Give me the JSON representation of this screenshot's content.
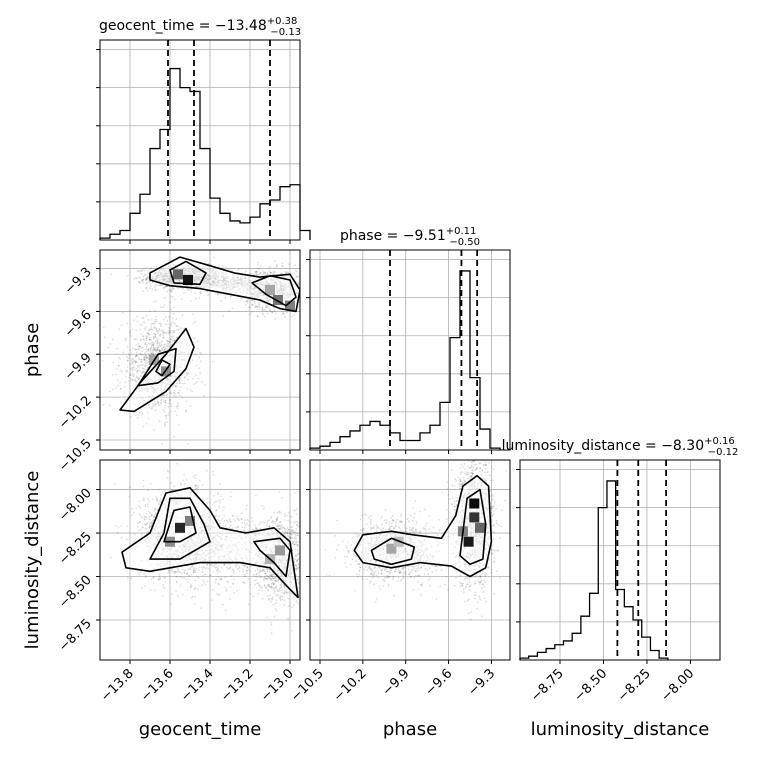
{
  "chart_data": {
    "type": "corner",
    "parameters": [
      "geocent_time",
      "phase",
      "luminosity_distance"
    ],
    "titles": [
      {
        "param": "geocent_time",
        "prefix": "geocent_time = ",
        "median": "−13.48",
        "plus": "+0.38",
        "minus": "−0.13"
      },
      {
        "param": "phase",
        "prefix": "phase = ",
        "median": "−9.51",
        "plus": "+0.11",
        "minus": "−0.50"
      },
      {
        "param": "luminosity_distance",
        "prefix": "luminosity_distance = ",
        "median": "−8.30",
        "plus": "+0.16",
        "minus": "−0.12"
      }
    ],
    "ranges": {
      "geocent_time": [
        -13.95,
        -12.95
      ],
      "phase": [
        -10.57,
        -9.17
      ],
      "luminosity_distance": [
        -8.98,
        -7.83
      ]
    },
    "ticks": {
      "geocent_time": [
        -13.8,
        -13.6,
        -13.4,
        -13.2,
        -13.0
      ],
      "phase": [
        -10.5,
        -10.2,
        -9.9,
        -9.6,
        -9.3
      ],
      "luminosity_distance": [
        -8.75,
        -8.5,
        -8.25,
        -8.0
      ]
    },
    "tick_labels": {
      "geocent_time": [
        "−13.8",
        "−13.6",
        "−13.4",
        "−13.2",
        "−13.0"
      ],
      "phase": [
        "−10.5",
        "−10.2",
        "−9.9",
        "−9.6",
        "−9.3"
      ],
      "luminosity_distance": [
        "−8.75",
        "−8.50",
        "−8.25",
        "−8.00"
      ]
    },
    "quantile_lines": {
      "geocent_time": [
        -13.61,
        -13.48,
        -13.1
      ],
      "phase": [
        -10.01,
        -9.51,
        -9.4
      ],
      "luminosity_distance": [
        -8.42,
        -8.3,
        -8.14
      ]
    },
    "histograms": {
      "geocent_time": {
        "edges_start": -13.95,
        "bin_width": 0.05,
        "heights": [
          0.01,
          0.03,
          0.05,
          0.14,
          0.24,
          0.48,
          0.58,
          0.9,
          0.8,
          0.78,
          0.48,
          0.22,
          0.14,
          0.1,
          0.09,
          0.12,
          0.19,
          0.21,
          0.28,
          0.29,
          0.05
        ]
      },
      "phase": {
        "edges_start": -10.57,
        "bin_width": 0.07,
        "heights": [
          0.01,
          0.02,
          0.04,
          0.07,
          0.1,
          0.13,
          0.15,
          0.13,
          0.09,
          0.05,
          0.05,
          0.09,
          0.13,
          0.25,
          0.59,
          0.94,
          0.38,
          0.11,
          0.01
        ]
      },
      "luminosity_distance": {
        "edges_start": -8.98,
        "bin_width": 0.05,
        "heights": [
          0.01,
          0.02,
          0.04,
          0.06,
          0.08,
          0.1,
          0.14,
          0.23,
          0.35,
          0.8,
          0.94,
          0.37,
          0.28,
          0.21,
          0.12,
          0.05,
          0.01
        ]
      }
    },
    "histogram_ylim": [
      0,
      1.05
    ],
    "histogram_yticks": [
      0.2,
      0.4,
      0.6,
      0.8,
      1.0
    ],
    "clusters": {
      "geocent_time|phase": [
        {
          "cx": -13.53,
          "cy": -9.36,
          "sx": 0.09,
          "sy": 0.04,
          "n": 1200
        },
        {
          "cx": -13.08,
          "cy": -9.45,
          "sx": 0.07,
          "sy": 0.07,
          "n": 900
        },
        {
          "cx": -13.66,
          "cy": -9.98,
          "sx": 0.09,
          "sy": 0.16,
          "n": 1100
        },
        {
          "cx": -13.3,
          "cy": -9.4,
          "sx": 0.12,
          "sy": 0.04,
          "n": 500
        }
      ],
      "geocent_time|luminosity_distance": [
        {
          "cx": -13.55,
          "cy": -8.25,
          "sx": 0.1,
          "sy": 0.13,
          "n": 1300
        },
        {
          "cx": -13.05,
          "cy": -8.4,
          "sx": 0.06,
          "sy": 0.12,
          "n": 900
        },
        {
          "cx": -13.3,
          "cy": -8.35,
          "sx": 0.2,
          "sy": 0.12,
          "n": 800
        }
      ],
      "phase|luminosity_distance": [
        {
          "cx": -9.97,
          "cy": -8.35,
          "sx": 0.15,
          "sy": 0.09,
          "n": 1000
        },
        {
          "cx": -9.42,
          "cy": -8.2,
          "sx": 0.07,
          "sy": 0.18,
          "n": 1300
        }
      ]
    },
    "contours": {
      "geocent_time|phase": [
        [
          [
            -13.7,
            -9.33
          ],
          [
            -13.55,
            -9.22
          ],
          [
            -13.4,
            -9.28
          ],
          [
            -13.28,
            -9.33
          ],
          [
            -13.15,
            -9.36
          ],
          [
            -13.0,
            -9.34
          ],
          [
            -12.95,
            -9.45
          ],
          [
            -12.97,
            -9.6
          ],
          [
            -13.05,
            -9.58
          ],
          [
            -13.15,
            -9.52
          ],
          [
            -13.3,
            -9.48
          ],
          [
            -13.45,
            -9.44
          ],
          [
            -13.6,
            -9.42
          ],
          [
            -13.7,
            -9.38
          ]
        ],
        [
          [
            -13.6,
            -9.31
          ],
          [
            -13.52,
            -9.25
          ],
          [
            -13.42,
            -9.33
          ],
          [
            -13.45,
            -9.41
          ],
          [
            -13.58,
            -9.4
          ]
        ],
        [
          [
            -13.19,
            -9.4
          ],
          [
            -13.1,
            -9.35
          ],
          [
            -13.0,
            -9.38
          ],
          [
            -12.97,
            -9.5
          ],
          [
            -13.02,
            -9.56
          ],
          [
            -13.12,
            -9.48
          ]
        ],
        [
          [
            -13.85,
            -10.29
          ],
          [
            -13.75,
            -10.1
          ],
          [
            -13.62,
            -9.9
          ],
          [
            -13.52,
            -9.72
          ],
          [
            -13.48,
            -9.85
          ],
          [
            -13.52,
            -10.0
          ],
          [
            -13.62,
            -10.16
          ],
          [
            -13.78,
            -10.3
          ]
        ],
        [
          [
            -13.76,
            -10.12
          ],
          [
            -13.66,
            -9.9
          ],
          [
            -13.57,
            -9.86
          ],
          [
            -13.58,
            -10.02
          ],
          [
            -13.66,
            -10.1
          ]
        ],
        [
          [
            -13.67,
            -10.02
          ],
          [
            -13.64,
            -9.94
          ],
          [
            -13.6,
            -9.97
          ],
          [
            -13.64,
            -10.05
          ]
        ]
      ],
      "geocent_time|luminosity_distance": [
        [
          [
            -13.84,
            -8.36
          ],
          [
            -13.7,
            -8.25
          ],
          [
            -13.62,
            -8.02
          ],
          [
            -13.5,
            -7.99
          ],
          [
            -13.4,
            -8.12
          ],
          [
            -13.35,
            -8.22
          ],
          [
            -13.22,
            -8.25
          ],
          [
            -13.08,
            -8.22
          ],
          [
            -13.0,
            -8.3
          ],
          [
            -12.96,
            -8.62
          ],
          [
            -13.02,
            -8.55
          ],
          [
            -13.1,
            -8.45
          ],
          [
            -13.25,
            -8.42
          ],
          [
            -13.45,
            -8.42
          ],
          [
            -13.6,
            -8.45
          ],
          [
            -13.7,
            -8.47
          ],
          [
            -13.82,
            -8.45
          ]
        ],
        [
          [
            -13.7,
            -8.4
          ],
          [
            -13.63,
            -8.25
          ],
          [
            -13.6,
            -8.05
          ],
          [
            -13.5,
            -8.05
          ],
          [
            -13.43,
            -8.2
          ],
          [
            -13.4,
            -8.3
          ],
          [
            -13.55,
            -8.4
          ]
        ],
        [
          [
            -13.18,
            -8.3
          ],
          [
            -13.05,
            -8.28
          ],
          [
            -13.0,
            -8.35
          ],
          [
            -13.02,
            -8.5
          ],
          [
            -13.08,
            -8.42
          ],
          [
            -13.15,
            -8.35
          ]
        ],
        [
          [
            -13.63,
            -8.3
          ],
          [
            -13.58,
            -8.12
          ],
          [
            -13.5,
            -8.1
          ],
          [
            -13.47,
            -8.25
          ],
          [
            -13.55,
            -8.3
          ]
        ]
      ],
      "phase|luminosity_distance": [
        [
          [
            -10.26,
            -8.35
          ],
          [
            -10.2,
            -8.26
          ],
          [
            -10.0,
            -8.24
          ],
          [
            -9.85,
            -8.26
          ],
          [
            -9.65,
            -8.28
          ],
          [
            -9.55,
            -8.15
          ],
          [
            -9.5,
            -7.98
          ],
          [
            -9.4,
            -7.92
          ],
          [
            -9.32,
            -7.98
          ],
          [
            -9.3,
            -8.3
          ],
          [
            -9.34,
            -8.45
          ],
          [
            -9.45,
            -8.5
          ],
          [
            -9.58,
            -8.44
          ],
          [
            -9.8,
            -8.42
          ],
          [
            -10.0,
            -8.45
          ],
          [
            -10.2,
            -8.42
          ]
        ],
        [
          [
            -10.14,
            -8.35
          ],
          [
            -10.0,
            -8.28
          ],
          [
            -9.84,
            -8.33
          ],
          [
            -9.86,
            -8.4
          ],
          [
            -10.0,
            -8.43
          ],
          [
            -10.12,
            -8.4
          ]
        ],
        [
          [
            -9.52,
            -8.38
          ],
          [
            -9.47,
            -8.05
          ],
          [
            -9.38,
            -8.0
          ],
          [
            -9.34,
            -8.2
          ],
          [
            -9.36,
            -8.4
          ],
          [
            -9.45,
            -8.43
          ]
        ]
      ]
    },
    "hotspots": {
      "geocent_time|phase": [
        [
          -13.51,
          -9.38,
          0.92
        ],
        [
          -13.56,
          -9.34,
          0.6
        ],
        [
          -13.06,
          -9.52,
          0.55
        ],
        [
          -13.0,
          -9.56,
          0.5
        ],
        [
          -13.1,
          -9.45,
          0.35
        ],
        [
          -13.62,
          -10.02,
          0.45
        ],
        [
          -13.68,
          -9.94,
          0.35
        ]
      ],
      "geocent_time|luminosity_distance": [
        [
          -13.55,
          -8.22,
          0.85
        ],
        [
          -13.5,
          -8.18,
          0.5
        ],
        [
          -13.6,
          -8.3,
          0.45
        ],
        [
          -13.05,
          -8.35,
          0.4
        ],
        [
          -13.1,
          -8.4,
          0.3
        ]
      ],
      "phase|luminosity_distance": [
        [
          -9.42,
          -8.08,
          0.95
        ],
        [
          -9.42,
          -8.16,
          0.8
        ],
        [
          -9.46,
          -8.3,
          0.9
        ],
        [
          -9.38,
          -8.22,
          0.6
        ],
        [
          -9.5,
          -8.24,
          0.5
        ],
        [
          -10.0,
          -8.34,
          0.35
        ],
        [
          -9.95,
          -8.3,
          0.25
        ]
      ]
    }
  }
}
